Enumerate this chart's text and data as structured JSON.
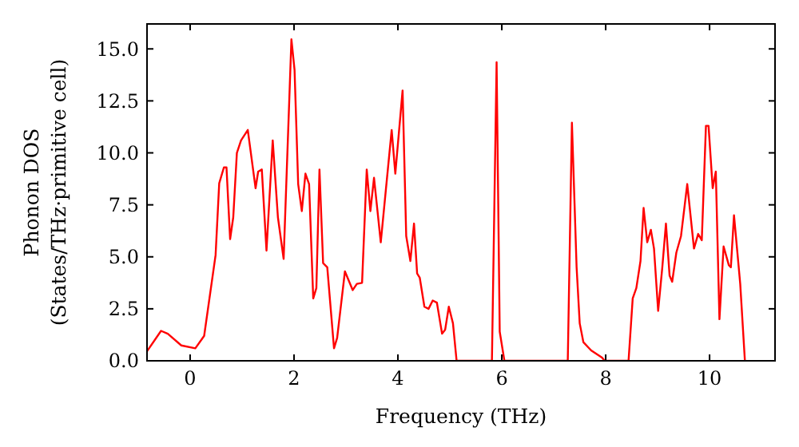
{
  "chart_data": {
    "type": "line",
    "xlabel": "Frequency (THz)",
    "ylabel": "Phonon DOS\n(States/THz·primitive cell)",
    "xlim": [
      -0.83,
      11.26
    ],
    "ylim": [
      0,
      16.2
    ],
    "xticks": [
      0,
      2,
      4,
      6,
      8,
      10
    ],
    "yticks": [
      {
        "value": 0,
        "label": "0.0"
      },
      {
        "value": 2.5,
        "label": "2.5"
      },
      {
        "value": 5,
        "label": "5.0"
      },
      {
        "value": 7.5,
        "label": "7.5"
      },
      {
        "value": 10,
        "label": "10.0"
      },
      {
        "value": 12.5,
        "label": "12.5"
      },
      {
        "value": 15,
        "label": "15.0"
      }
    ],
    "grid": false,
    "marker": "none",
    "line_style": "solid",
    "series": [
      {
        "color": "#ff0000",
        "x": [
          -0.83,
          -0.56,
          -0.43,
          -0.17,
          0.1,
          0.27,
          0.49,
          0.56,
          0.65,
          0.7,
          0.77,
          0.83,
          0.9,
          0.98,
          1.11,
          1.26,
          1.31,
          1.38,
          1.47,
          1.59,
          1.69,
          1.8,
          1.95,
          2.01,
          2.08,
          2.15,
          2.22,
          2.29,
          2.37,
          2.43,
          2.49,
          2.56,
          2.64,
          2.77,
          2.83,
          2.98,
          3.13,
          3.21,
          3.31,
          3.4,
          3.47,
          3.54,
          3.67,
          3.88,
          3.95,
          4.09,
          4.16,
          4.24,
          4.31,
          4.37,
          4.42,
          4.51,
          4.59,
          4.67,
          4.75,
          4.85,
          4.91,
          4.98,
          5.06,
          5.13,
          5.81,
          5.9,
          5.96,
          6.05,
          7.27,
          7.35,
          7.44,
          7.5,
          7.57,
          7.72,
          7.93,
          7.98,
          8.44,
          8.52,
          8.59,
          8.67,
          8.73,
          8.8,
          8.87,
          8.93,
          9.01,
          9.09,
          9.16,
          9.23,
          9.28,
          9.36,
          9.45,
          9.57,
          9.7,
          9.78,
          9.85,
          9.93,
          9.98,
          10.06,
          10.12,
          10.19,
          10.27,
          10.37,
          10.41,
          10.47,
          10.59,
          10.68
        ],
        "values": [
          0.46,
          1.44,
          1.3,
          0.74,
          0.6,
          1.2,
          5.08,
          8.54,
          9.3,
          9.3,
          5.85,
          6.9,
          10.0,
          10.6,
          11.1,
          8.3,
          9.1,
          9.2,
          5.3,
          10.6,
          6.9,
          4.9,
          15.46,
          14.0,
          8.5,
          7.2,
          9.0,
          8.5,
          3.0,
          3.5,
          9.2,
          4.7,
          4.5,
          0.6,
          1.1,
          4.3,
          3.4,
          3.7,
          3.75,
          9.2,
          7.2,
          8.8,
          5.7,
          11.1,
          9.0,
          13.0,
          6.0,
          4.8,
          6.6,
          4.2,
          4.0,
          2.6,
          2.5,
          2.9,
          2.8,
          1.3,
          1.5,
          2.6,
          1.8,
          0,
          0,
          14.36,
          1.4,
          0,
          0,
          11.45,
          4.5,
          1.8,
          0.9,
          0.5,
          0.15,
          0,
          0,
          3.0,
          3.5,
          4.8,
          7.35,
          5.7,
          6.3,
          5.4,
          2.4,
          4.5,
          6.6,
          4.1,
          3.8,
          5.2,
          6.0,
          8.5,
          5.4,
          6.1,
          5.8,
          11.3,
          11.3,
          8.3,
          9.1,
          2.0,
          5.5,
          4.6,
          4.5,
          7.0,
          3.7,
          0
        ]
      }
    ]
  }
}
